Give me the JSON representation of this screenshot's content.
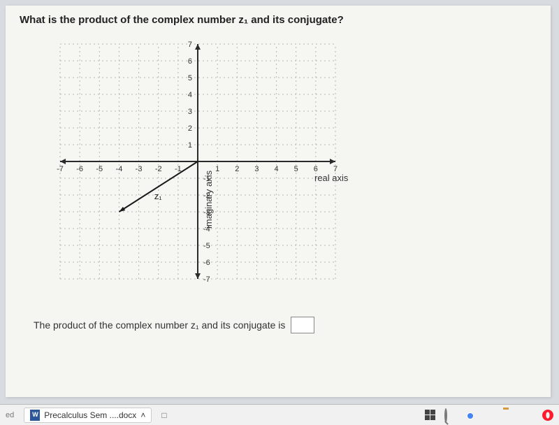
{
  "question": "What is the product of the complex number z₁ and its conjugate?",
  "answer_prefix": "The product of the complex number z₁ and its conjugate is",
  "chart": {
    "type": "line",
    "x_axis_label": "real axis",
    "y_axis_label": "imaginary axis",
    "xlim": [
      -7,
      7
    ],
    "ylim": [
      -7,
      7
    ],
    "xtick_step": 1,
    "ytick_step": 1,
    "x_tick_labels": [
      "-7",
      "-6",
      "-5",
      "-4",
      "-3",
      "-2",
      "-1",
      "",
      "1",
      "2",
      "3",
      "4",
      "5",
      "6",
      "7"
    ],
    "y_tick_labels_pos": [
      "1",
      "2",
      "3",
      "4",
      "5",
      "6",
      "7"
    ],
    "y_tick_labels_neg": [
      "-1",
      "-2",
      "-3",
      "-4",
      "-5",
      "-6",
      "-7"
    ],
    "background_color": "#f6f6f2",
    "grid_color": "#b7b7b0",
    "grid_dash": "2,4",
    "axis_color": "#2a2a2a",
    "axis_width": 2,
    "tick_font_size": 11,
    "axis_label_font_size": 13,
    "vector": {
      "label": "z₁",
      "start": [
        0,
        0
      ],
      "end": [
        -4,
        -3
      ],
      "color": "#1a1a1a",
      "width": 2
    }
  },
  "taskbar": {
    "left_text": "ed",
    "download_item": "Precalculus Sem ....docx",
    "arrow": "˄",
    "show_in_folder": "□"
  }
}
